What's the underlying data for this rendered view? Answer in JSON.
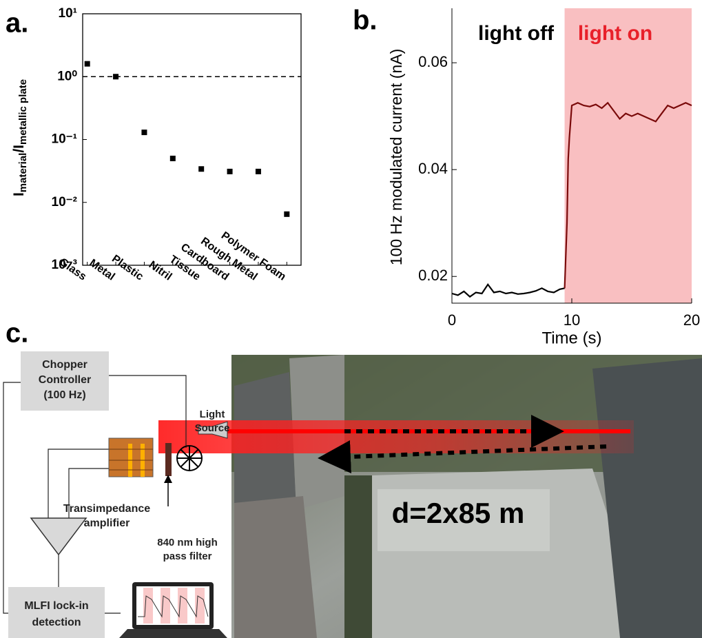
{
  "panel_labels": [
    "a.",
    "b.",
    "c."
  ],
  "chart_data": [
    {
      "type": "scatter",
      "categories": [
        "Glass",
        "Metal",
        "Plastic",
        "Nitril",
        "Tissue",
        "Cardboard",
        "Rough Metal",
        "Polymer Foam"
      ],
      "values": [
        1.6,
        1.0,
        0.13,
        0.05,
        0.034,
        0.031,
        0.031,
        0.0065
      ],
      "color": "#000000",
      "yscale": "log",
      "ylim": [
        0.001,
        10
      ],
      "yticks": [
        {
          "value": 0.001,
          "label": "10⁻³"
        },
        {
          "value": 0.01,
          "label": "10⁻²"
        },
        {
          "value": 0.1,
          "label": "10⁻¹"
        },
        {
          "value": 1,
          "label": "10⁰"
        },
        {
          "value": 10,
          "label": "10¹"
        }
      ],
      "ylabel": [
        "I",
        "material",
        "/I",
        "metallic plate"
      ],
      "reference_line": 1
    },
    {
      "type": "line",
      "ylabel": "100 Hz modulated current (nA)",
      "xlabel": "Time (s)",
      "xlim": [
        0,
        20
      ],
      "xticks": [
        0,
        10,
        20
      ],
      "ylim": [
        0.015,
        0.0702
      ],
      "yticks": [
        0.02,
        0.04,
        0.06
      ],
      "highlight": {
        "from": 9.4,
        "to": 20,
        "color": "#f9bfc1"
      },
      "series": [
        {
          "name": "light off",
          "color": "#000000",
          "x": [
            0,
            0.5,
            1,
            1.5,
            2,
            2.5,
            3,
            3.5,
            4,
            4.5,
            5,
            5.5,
            6,
            6.5,
            7,
            7.5,
            8,
            8.5,
            9,
            9.4
          ],
          "values": [
            0.0168,
            0.0165,
            0.0172,
            0.0162,
            0.017,
            0.0168,
            0.0185,
            0.017,
            0.0172,
            0.0168,
            0.017,
            0.0167,
            0.0168,
            0.017,
            0.0173,
            0.0178,
            0.0172,
            0.017,
            0.0176,
            0.0178
          ]
        },
        {
          "name": "light on",
          "color": "#7a0a0a",
          "x": [
            9.4,
            9.6,
            9.7,
            9.8,
            10,
            10.5,
            11,
            11.5,
            12,
            12.5,
            13,
            13.5,
            14,
            14.5,
            15,
            15.5,
            16,
            16.5,
            17,
            17.5,
            18,
            18.5,
            19,
            19.5,
            20
          ],
          "values": [
            0.0178,
            0.03,
            0.042,
            0.046,
            0.052,
            0.0525,
            0.052,
            0.0518,
            0.0522,
            0.0515,
            0.0525,
            0.051,
            0.0495,
            0.0505,
            0.05,
            0.0505,
            0.05,
            0.0495,
            0.049,
            0.0505,
            0.052,
            0.0515,
            0.052,
            0.0525,
            0.052
          ]
        }
      ]
    }
  ],
  "diagram": {
    "chopper_controller": [
      "Chopper",
      "Controller",
      "(100 Hz)"
    ],
    "light_source": [
      "Light",
      "Source"
    ],
    "amplifier": [
      "Transimpedance",
      "amplifier"
    ],
    "filter": [
      "840 nm high",
      "pass filter"
    ],
    "lockin": [
      "MLFI lock-in",
      "detection"
    ],
    "distance": "d=2x85 m"
  }
}
